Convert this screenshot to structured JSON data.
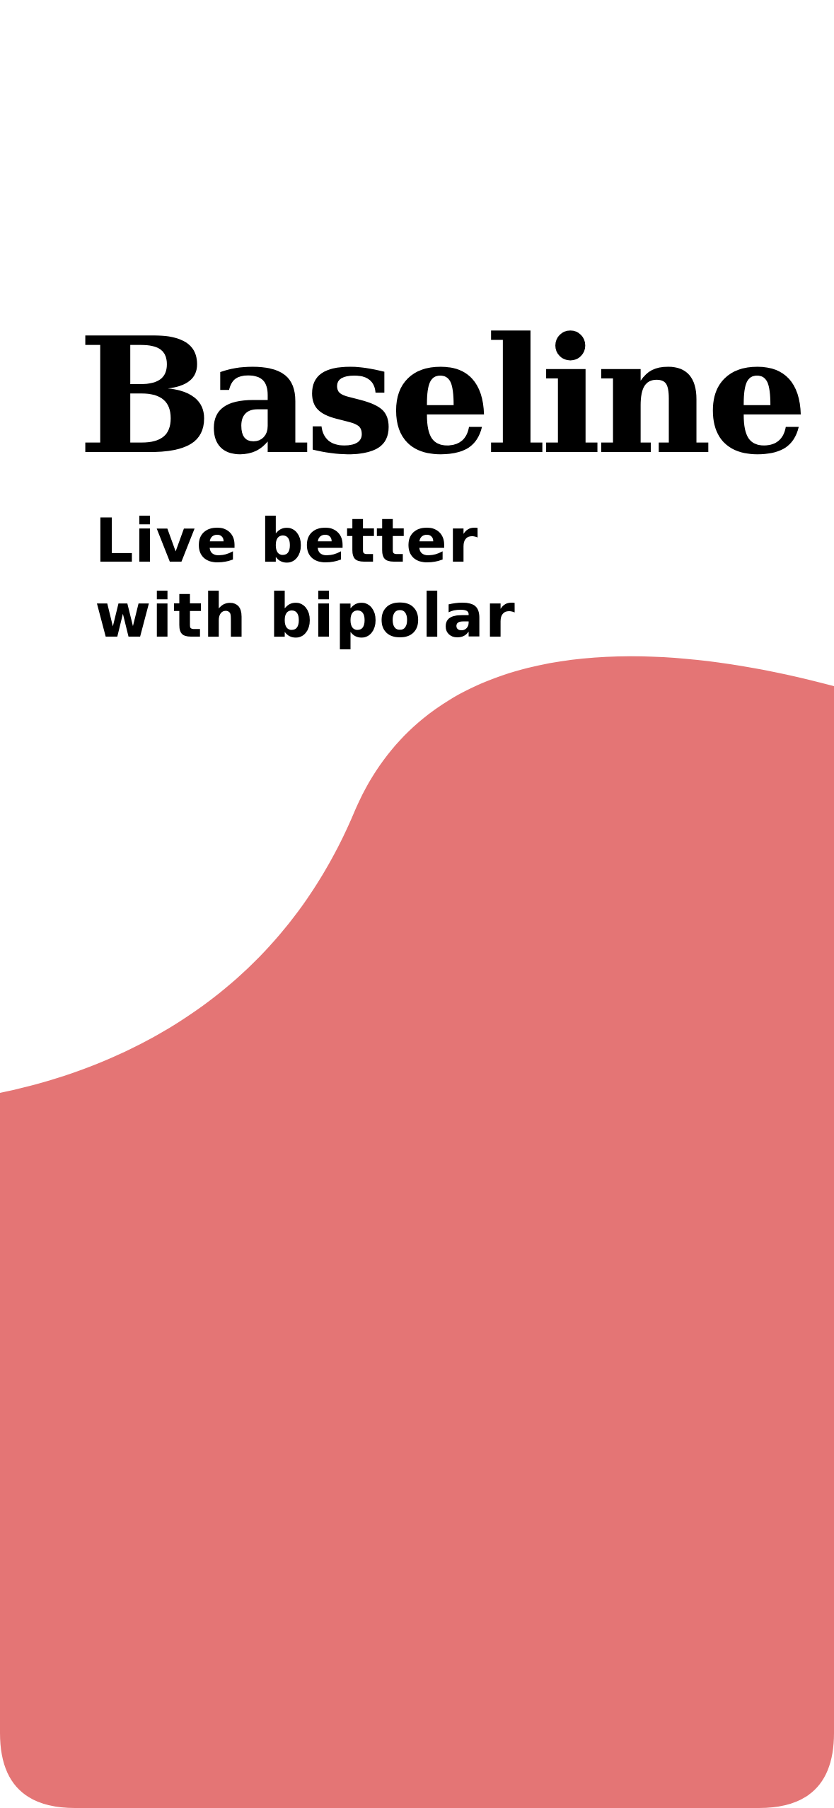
{
  "app": {
    "title": "Baseline",
    "tagline": "Live better with bipolar"
  },
  "colors": {
    "background": "#ffffff",
    "accent": "#e47575",
    "text": "#000000"
  }
}
